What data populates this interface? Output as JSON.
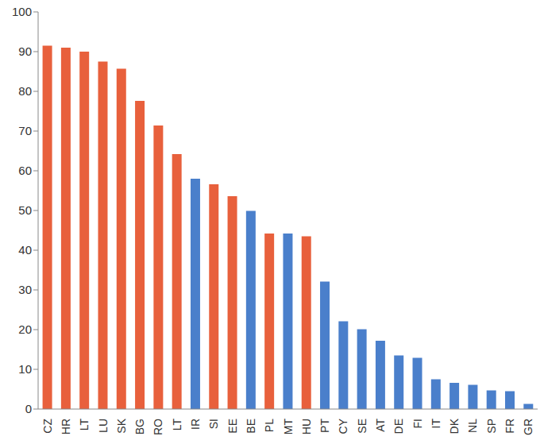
{
  "chart_data": {
    "type": "bar",
    "categories": [
      "CZ",
      "HR",
      "LT",
      "LU",
      "SK",
      "BG",
      "RO",
      "LT",
      "IR",
      "SI",
      "EE",
      "BE",
      "PL",
      "MT",
      "HU",
      "PT",
      "CY",
      "SE",
      "AT",
      "DE",
      "FI",
      "IT",
      "DK",
      "NL",
      "SP",
      "FR",
      "GR"
    ],
    "values": [
      91.5,
      91,
      90,
      87.5,
      85.7,
      77.6,
      71.4,
      64.2,
      58,
      56.6,
      53.6,
      49.9,
      44.2,
      44.2,
      43.5,
      32.1,
      22.1,
      20.1,
      17.2,
      13.5,
      12.9,
      7.5,
      6.6,
      6.1,
      4.7,
      4.5,
      1.3
    ],
    "colors": [
      "#e8603c",
      "#e8603c",
      "#e8603c",
      "#e8603c",
      "#e8603c",
      "#e8603c",
      "#e8603c",
      "#e8603c",
      "#4a7fcb",
      "#e8603c",
      "#e8603c",
      "#4a7fcb",
      "#e8603c",
      "#4a7fcb",
      "#e8603c",
      "#4a7fcb",
      "#4a7fcb",
      "#4a7fcb",
      "#4a7fcb",
      "#4a7fcb",
      "#4a7fcb",
      "#4a7fcb",
      "#4a7fcb",
      "#4a7fcb",
      "#4a7fcb",
      "#4a7fcb",
      "#4a7fcb"
    ],
    "ylim": [
      0,
      100
    ],
    "yticks": [
      0,
      10,
      20,
      30,
      40,
      50,
      60,
      70,
      80,
      90,
      100
    ],
    "grid": false
  }
}
